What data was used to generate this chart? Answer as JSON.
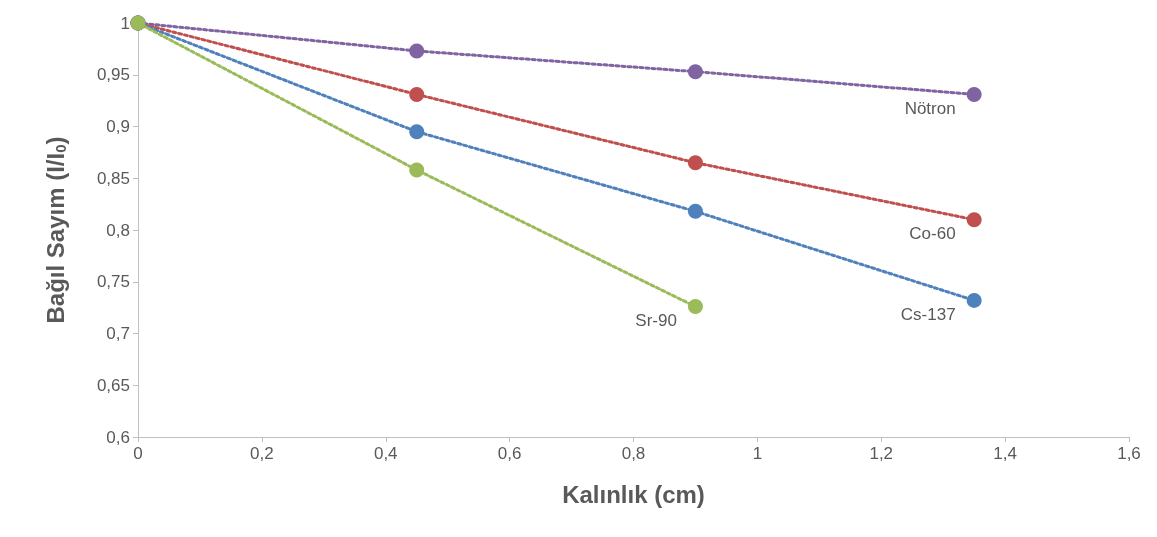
{
  "chart_data": {
    "type": "line",
    "xlabel": "Kalınlık (cm)",
    "ylabel": "Bağıl Sayım (I/I$_{0}$)",
    "marker": "circle",
    "line_style": "dotted",
    "grid": false,
    "legend": false,
    "xlim": [
      0,
      1.6
    ],
    "xticks": [
      0,
      {
        "value": 0.2,
        "label": "0,2"
      },
      {
        "value": 0.4,
        "label": "0,4"
      },
      {
        "value": 0.6,
        "label": "0,6"
      },
      {
        "value": 0.8,
        "label": "0,8"
      },
      1,
      {
        "value": 1.2,
        "label": "1,2"
      },
      {
        "value": 1.4,
        "label": "1,4"
      },
      {
        "value": 1.6,
        "label": "1,6"
      }
    ],
    "ylim": [
      0.6,
      1
    ],
    "yticks": [
      {
        "value": 0.6,
        "label": "0,6"
      },
      {
        "value": 0.65,
        "label": "0,65"
      },
      {
        "value": 0.7,
        "label": "0,7"
      },
      {
        "value": 0.75,
        "label": "0,75"
      },
      {
        "value": 0.8,
        "label": "0,8"
      },
      {
        "value": 0.85,
        "label": "0,85"
      },
      {
        "value": 0.9,
        "label": "0,9"
      },
      {
        "value": 0.95,
        "label": "0,95"
      },
      1
    ],
    "series": [
      {
        "name": "Nötron",
        "color": "#8064a2",
        "x": [
          0,
          0.45,
          0.9,
          1.35
        ],
        "values": [
          1,
          0.973,
          0.953,
          0.931
        ]
      },
      {
        "name": "Co-60",
        "color": "#c0504d",
        "x": [
          0,
          0.45,
          0.9,
          1.35
        ],
        "values": [
          1,
          0.931,
          0.865,
          0.81
        ]
      },
      {
        "name": "Cs-137",
        "color": "#4f81bd",
        "x": [
          0,
          0.45,
          0.9,
          1.35
        ],
        "values": [
          1,
          0.895,
          0.818,
          0.732
        ]
      },
      {
        "name": "Sr-90",
        "color": "#9bbb59",
        "x": [
          0,
          0.45,
          0.9
        ],
        "values": [
          1,
          0.858,
          0.726
        ]
      }
    ]
  }
}
